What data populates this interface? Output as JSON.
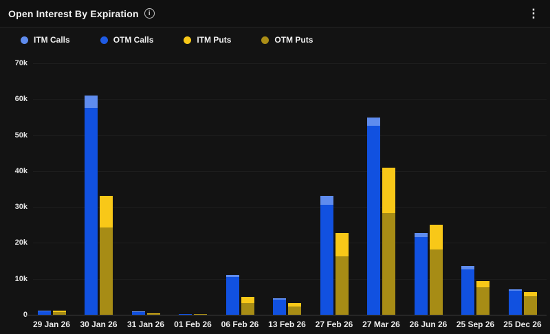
{
  "header": {
    "title": "Open Interest By Expiration",
    "info_icon_glyph": "i",
    "menu_icon_glyph": "⋮"
  },
  "legend": [
    {
      "label": "ITM Calls",
      "color": "#5f8cee"
    },
    {
      "label": "OTM Calls",
      "color": "#1f5be4"
    },
    {
      "label": "ITM Puts",
      "color": "#f8c818"
    },
    {
      "label": "OTM Puts",
      "color": "#ab8e16"
    }
  ],
  "colors": {
    "background": "#131313",
    "header_background": "#101010",
    "gridline": "#1d1d1d",
    "axis_line": "#414141",
    "axis_text": "#e3e3e3",
    "itm_calls": "#5f8cee",
    "otm_calls": "#1151e0",
    "itm_puts": "#f8c818",
    "otm_puts": "#a78c15"
  },
  "chart_data": {
    "type": "bar",
    "stacked": true,
    "title": "Open Interest By Expiration",
    "xlabel": "",
    "ylabel": "",
    "ylim": [
      0,
      70000
    ],
    "grid": true,
    "legend_position": "top-left",
    "y_ticks": [
      "70k",
      "60k",
      "50k",
      "40k",
      "30k",
      "20k",
      "10k",
      "0"
    ],
    "y_tick_values": [
      70000,
      60000,
      50000,
      40000,
      30000,
      20000,
      10000,
      0
    ],
    "categories": [
      "29 Jan 26",
      "30 Jan 26",
      "31 Jan 26",
      "01 Feb 26",
      "06 Feb 26",
      "13 Feb 26",
      "27 Feb 26",
      "27 Mar 26",
      "26 Jun 26",
      "25 Sep 26",
      "25 Dec 26"
    ],
    "series": [
      {
        "name": "OTM Calls",
        "stack": "calls",
        "color": "#1151e0",
        "values": [
          1000,
          57500,
          800,
          100,
          10600,
          4200,
          30600,
          52600,
          21600,
          12600,
          6600
        ]
      },
      {
        "name": "ITM Calls",
        "stack": "calls",
        "color": "#5f8cee",
        "values": [
          200,
          3500,
          100,
          0,
          400,
          300,
          2400,
          2300,
          1200,
          1000,
          400
        ]
      },
      {
        "name": "OTM Puts",
        "stack": "puts",
        "color": "#a78c15",
        "values": [
          800,
          24300,
          300,
          100,
          3300,
          2200,
          16200,
          28300,
          18200,
          7600,
          5200
        ]
      },
      {
        "name": "ITM Puts",
        "stack": "puts",
        "color": "#f8c818",
        "values": [
          400,
          8700,
          100,
          0,
          1700,
          1100,
          6500,
          12600,
          6800,
          1800,
          1100
        ]
      }
    ]
  }
}
